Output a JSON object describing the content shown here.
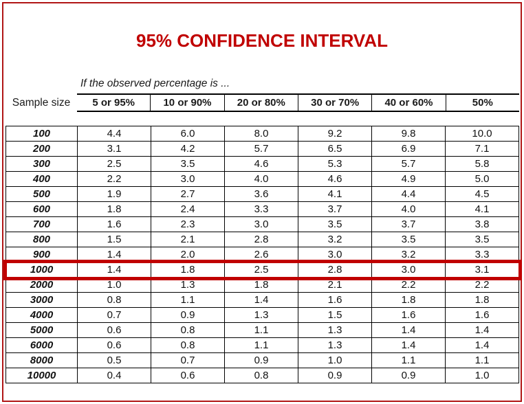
{
  "title": "95% CONFIDENCE INTERVAL",
  "colors": {
    "accent_red": "#c00000",
    "frame_red": "#b01515",
    "table_border": "#000000"
  },
  "table": {
    "subtitle": "If the observed percentage is ...",
    "row_header_label": "Sample size",
    "columns": [
      "5 or 95%",
      "10 or 90%",
      "20 or 80%",
      "30 or 70%",
      "40 or 60%",
      "50%"
    ],
    "highlighted_sample_size": "1000",
    "rows": [
      {
        "sample_size": "100",
        "values": [
          "4.4",
          "6.0",
          "8.0",
          "9.2",
          "9.8",
          "10.0"
        ],
        "highlighted": false
      },
      {
        "sample_size": "200",
        "values": [
          "3.1",
          "4.2",
          "5.7",
          "6.5",
          "6.9",
          "7.1"
        ],
        "highlighted": false
      },
      {
        "sample_size": "300",
        "values": [
          "2.5",
          "3.5",
          "4.6",
          "5.3",
          "5.7",
          "5.8"
        ],
        "highlighted": false
      },
      {
        "sample_size": "400",
        "values": [
          "2.2",
          "3.0",
          "4.0",
          "4.6",
          "4.9",
          "5.0"
        ],
        "highlighted": false
      },
      {
        "sample_size": "500",
        "values": [
          "1.9",
          "2.7",
          "3.6",
          "4.1",
          "4.4",
          "4.5"
        ],
        "highlighted": false
      },
      {
        "sample_size": "600",
        "values": [
          "1.8",
          "2.4",
          "3.3",
          "3.7",
          "4.0",
          "4.1"
        ],
        "highlighted": false
      },
      {
        "sample_size": "700",
        "values": [
          "1.6",
          "2.3",
          "3.0",
          "3.5",
          "3.7",
          "3.8"
        ],
        "highlighted": false
      },
      {
        "sample_size": "800",
        "values": [
          "1.5",
          "2.1",
          "2.8",
          "3.2",
          "3.5",
          "3.5"
        ],
        "highlighted": false
      },
      {
        "sample_size": "900",
        "values": [
          "1.4",
          "2.0",
          "2.6",
          "3.0",
          "3.2",
          "3.3"
        ],
        "highlighted": false
      },
      {
        "sample_size": "1000",
        "values": [
          "1.4",
          "1.8",
          "2.5",
          "2.8",
          "3.0",
          "3.1"
        ],
        "highlighted": true
      },
      {
        "sample_size": "2000",
        "values": [
          "1.0",
          "1.3",
          "1.8",
          "2.1",
          "2.2",
          "2.2"
        ],
        "highlighted": false
      },
      {
        "sample_size": "3000",
        "values": [
          "0.8",
          "1.1",
          "1.4",
          "1.6",
          "1.8",
          "1.8"
        ],
        "highlighted": false
      },
      {
        "sample_size": "4000",
        "values": [
          "0.7",
          "0.9",
          "1.3",
          "1.5",
          "1.6",
          "1.6"
        ],
        "highlighted": false
      },
      {
        "sample_size": "5000",
        "values": [
          "0.6",
          "0.8",
          "1.1",
          "1.3",
          "1.4",
          "1.4"
        ],
        "highlighted": false
      },
      {
        "sample_size": "6000",
        "values": [
          "0.6",
          "0.8",
          "1.1",
          "1.3",
          "1.4",
          "1.4"
        ],
        "highlighted": false
      },
      {
        "sample_size": "8000",
        "values": [
          "0.5",
          "0.7",
          "0.9",
          "1.0",
          "1.1",
          "1.1"
        ],
        "highlighted": false
      },
      {
        "sample_size": "10000",
        "values": [
          "0.4",
          "0.6",
          "0.8",
          "0.9",
          "0.9",
          "1.0"
        ],
        "highlighted": false
      }
    ]
  }
}
